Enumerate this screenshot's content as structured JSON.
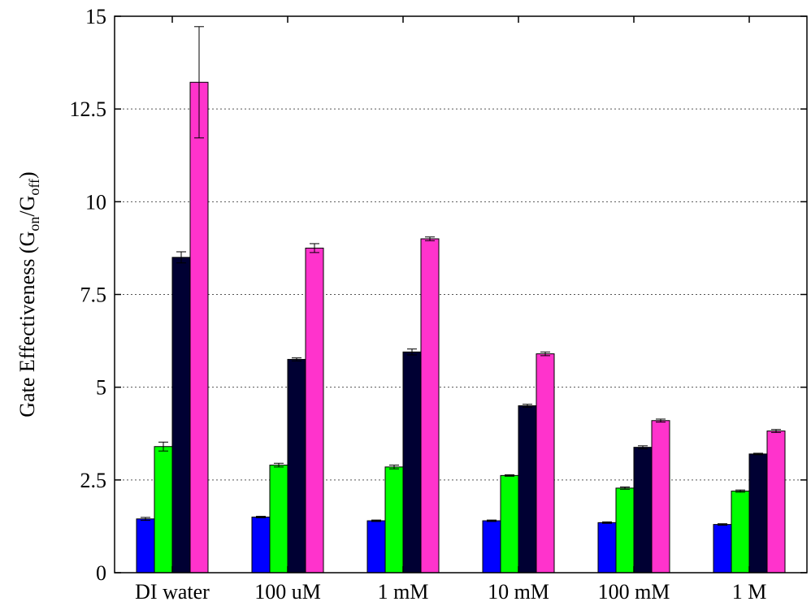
{
  "chart_data": {
    "type": "bar",
    "ylabel": {
      "prefix": "Gate Effectiveness (G",
      "sub1": "on",
      "mid": "/G",
      "sub2": "off",
      "suffix": ")"
    },
    "xlabel": "",
    "ylim": [
      0,
      15
    ],
    "yticks": [
      "0",
      "2.5",
      "5",
      "7.5",
      "10",
      "12.5",
      "15"
    ],
    "ytick_values": [
      0,
      2.5,
      5,
      7.5,
      10,
      12.5,
      15
    ],
    "grid": true,
    "legend": "none",
    "categories": [
      "DI water",
      "100 uM",
      "1 mM",
      "10 mM",
      "100 mM",
      "1 M"
    ],
    "series": [
      {
        "color": "#0000ff",
        "values": [
          1.45,
          1.5,
          1.4,
          1.4,
          1.35,
          1.3
        ],
        "errors": [
          0.04,
          0.02,
          0.02,
          0.02,
          0.02,
          0.02
        ]
      },
      {
        "color": "#00ff00",
        "values": [
          3.4,
          2.9,
          2.85,
          2.62,
          2.28,
          2.2
        ],
        "errors": [
          0.12,
          0.05,
          0.05,
          0.02,
          0.03,
          0.03
        ]
      },
      {
        "color": "#000033",
        "values": [
          8.5,
          5.75,
          5.95,
          4.5,
          3.38,
          3.2
        ],
        "errors": [
          0.15,
          0.04,
          0.08,
          0.04,
          0.04,
          0.02
        ]
      },
      {
        "color": "#ff33cc",
        "values": [
          13.22,
          8.75,
          9.0,
          5.9,
          4.1,
          3.82
        ],
        "errors": [
          1.5,
          0.12,
          0.05,
          0.05,
          0.04,
          0.04
        ]
      }
    ]
  }
}
